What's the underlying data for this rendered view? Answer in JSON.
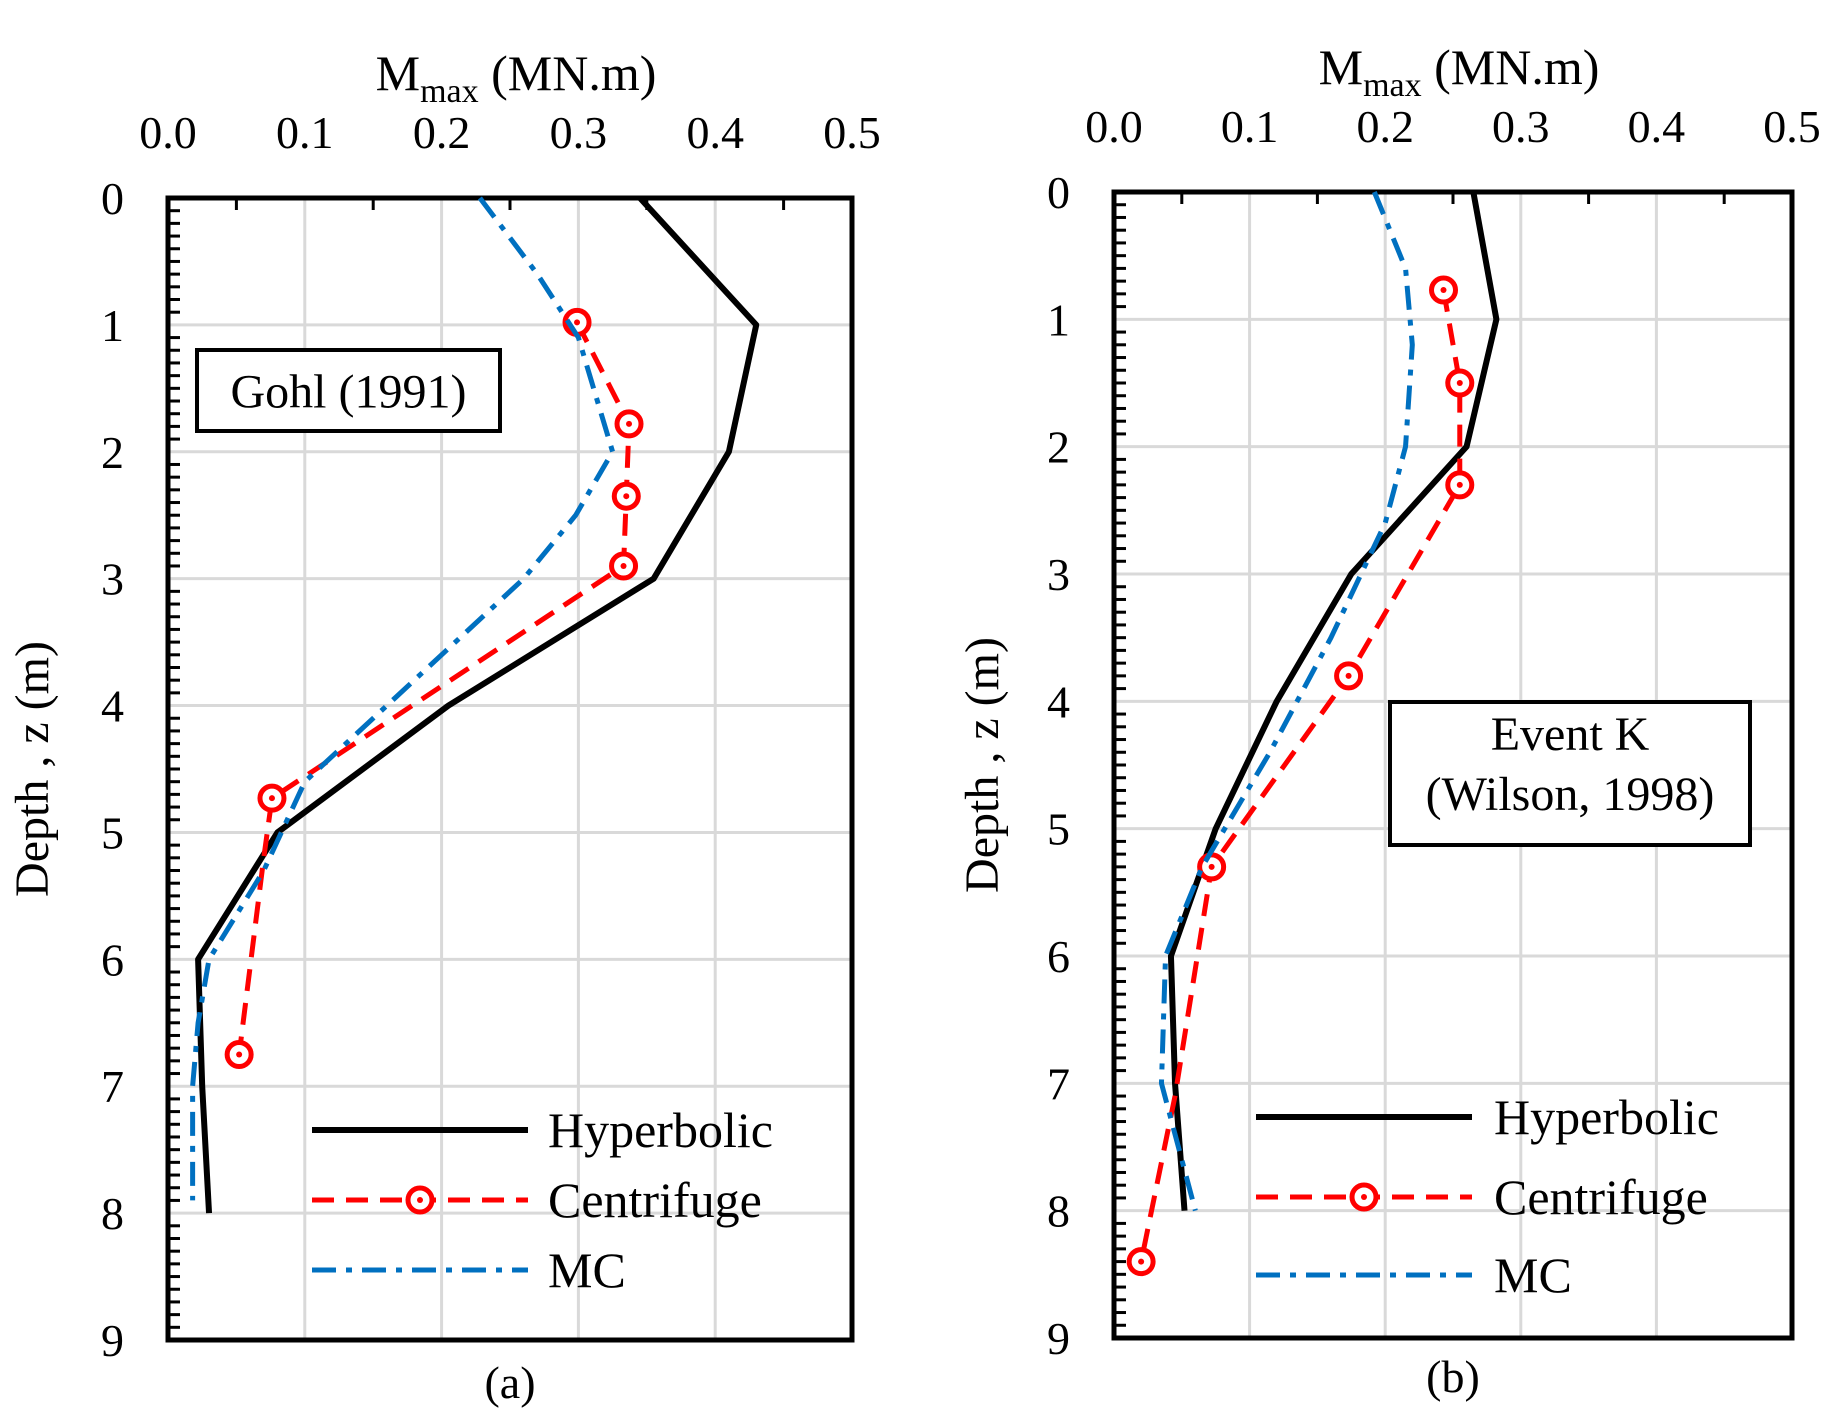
{
  "chart_data": [
    {
      "type": "line",
      "panel_label": "(a)",
      "xlabel_main": "M",
      "xlabel_sub": "max",
      "xlabel_unit": " (MN.m)",
      "ylabel": "Depth , z (m)",
      "xlim": [
        0,
        0.5
      ],
      "ylim": [
        0,
        9
      ],
      "xticks": [
        "0.0",
        "0.1",
        "0.2",
        "0.3",
        "0.4",
        "0.5"
      ],
      "yticks": [
        "0",
        "1",
        "2",
        "3",
        "4",
        "5",
        "6",
        "7",
        "8",
        "9"
      ],
      "grid": true,
      "annotation": [
        "Gohl (1991)"
      ],
      "legend_position": "bottom-right",
      "series": [
        {
          "name": "Hyperbolic",
          "style": "solid",
          "color": "#000000",
          "markers": false,
          "points": [
            [
              0.345,
              0
            ],
            [
              0.43,
              1
            ],
            [
              0.41,
              2
            ],
            [
              0.355,
              3
            ],
            [
              0.205,
              4
            ],
            [
              0.08,
              5
            ],
            [
              0.022,
              6
            ],
            [
              0.025,
              7
            ],
            [
              0.03,
              8
            ]
          ]
        },
        {
          "name": "Centrifuge",
          "style": "dashed",
          "color": "#ff0000",
          "markers": true,
          "points": [
            [
              0.299,
              0.98
            ],
            [
              0.337,
              1.78
            ],
            [
              0.335,
              2.35
            ],
            [
              0.333,
              2.9
            ],
            [
              0.076,
              4.73
            ],
            [
              0.07,
              5.2
            ],
            [
              0.052,
              6.75
            ]
          ]
        },
        {
          "name": "MC",
          "style": "dashdot",
          "color": "#0070c0",
          "markers": false,
          "points": [
            [
              0.228,
              0
            ],
            [
              0.27,
              0.6
            ],
            [
              0.3,
              1.1
            ],
            [
              0.325,
              2
            ],
            [
              0.298,
              2.5
            ],
            [
              0.26,
              3
            ],
            [
              0.2,
              3.6
            ],
            [
              0.16,
              4
            ],
            [
              0.1,
              4.6
            ],
            [
              0.07,
              5.3
            ],
            [
              0.03,
              6
            ],
            [
              0.022,
              6.5
            ],
            [
              0.018,
              7
            ],
            [
              0.018,
              7.9
            ]
          ]
        }
      ]
    },
    {
      "type": "line",
      "panel_label": "(b)",
      "xlabel_main": "M",
      "xlabel_sub": "max",
      "xlabel_unit": " (MN.m)",
      "ylabel": "Depth , z (m)",
      "xlim": [
        0,
        0.5
      ],
      "ylim": [
        0,
        9
      ],
      "xticks": [
        "0.0",
        "0.1",
        "0.2",
        "0.3",
        "0.4",
        "0.5"
      ],
      "yticks": [
        "0",
        "1",
        "2",
        "3",
        "4",
        "5",
        "6",
        "7",
        "8",
        "9"
      ],
      "grid": true,
      "annotation": [
        "Event K",
        "(Wilson, 1998)"
      ],
      "legend_position": "bottom-right",
      "series": [
        {
          "name": "Hyperbolic",
          "style": "solid",
          "color": "#000000",
          "markers": false,
          "points": [
            [
              0.265,
              0
            ],
            [
              0.282,
              1
            ],
            [
              0.26,
              2
            ],
            [
              0.175,
              3
            ],
            [
              0.12,
              4
            ],
            [
              0.075,
              5
            ],
            [
              0.042,
              6
            ],
            [
              0.045,
              7
            ],
            [
              0.052,
              8
            ]
          ]
        },
        {
          "name": "Centrifuge",
          "style": "dashed",
          "color": "#ff0000",
          "markers": true,
          "points": [
            [
              0.243,
              0.77
            ],
            [
              0.255,
              1.5
            ],
            [
              0.255,
              2.3
            ],
            [
              0.173,
              3.8
            ],
            [
              0.072,
              5.3
            ],
            [
              0.06,
              6.1
            ],
            [
              0.045,
              7.1
            ],
            [
              0.02,
              8.4
            ]
          ]
        },
        {
          "name": "MC",
          "style": "dashdot",
          "color": "#0070c0",
          "markers": false,
          "points": [
            [
              0.192,
              0
            ],
            [
              0.215,
              0.6
            ],
            [
              0.22,
              1.2
            ],
            [
              0.215,
              2
            ],
            [
              0.2,
              2.6
            ],
            [
              0.16,
              3.5
            ],
            [
              0.115,
              4.4
            ],
            [
              0.065,
              5.3
            ],
            [
              0.038,
              6
            ],
            [
              0.035,
              7
            ],
            [
              0.05,
              7.6
            ],
            [
              0.06,
              8
            ]
          ]
        }
      ]
    }
  ]
}
